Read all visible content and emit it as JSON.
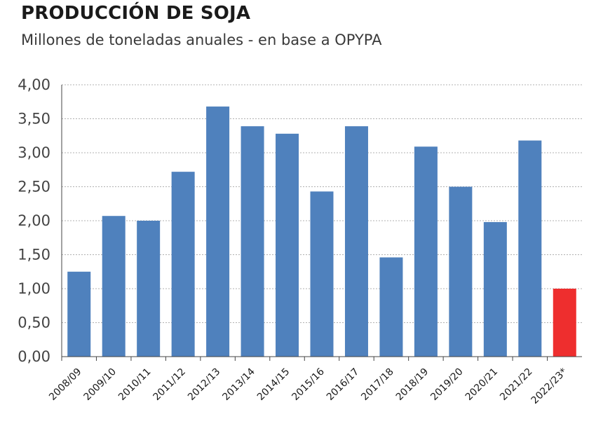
{
  "chart_data": {
    "type": "bar",
    "title": "PRODUCCIÓN DE SOJA",
    "subtitle": "Millones de toneladas anuales - en base a OPYPA",
    "xlabel": "",
    "ylabel": "",
    "ylim": [
      0,
      4
    ],
    "yticks": [
      "0,00",
      "0,50",
      "1,00",
      "1,50",
      "2,00",
      "2,50",
      "3,00",
      "3,50",
      "4,00"
    ],
    "grid": true,
    "categories": [
      "2008/09",
      "2009/10",
      "2010/11",
      "2011/12",
      "2012/13",
      "2013/14",
      "2014/15",
      "2015/16",
      "2016/17",
      "2017/18",
      "2018/19",
      "2019/20",
      "2020/21",
      "2021/22",
      "2022/23*"
    ],
    "values": [
      1.25,
      2.07,
      2.0,
      2.72,
      3.68,
      3.39,
      3.28,
      2.43,
      3.39,
      1.46,
      3.09,
      2.5,
      1.98,
      3.18,
      1.0
    ],
    "colors": {
      "bar": "#4f81bd",
      "highlight": "#ee2e2e",
      "grid": "#b0b0b0",
      "axis": "#444444"
    },
    "highlight_index": 14
  }
}
